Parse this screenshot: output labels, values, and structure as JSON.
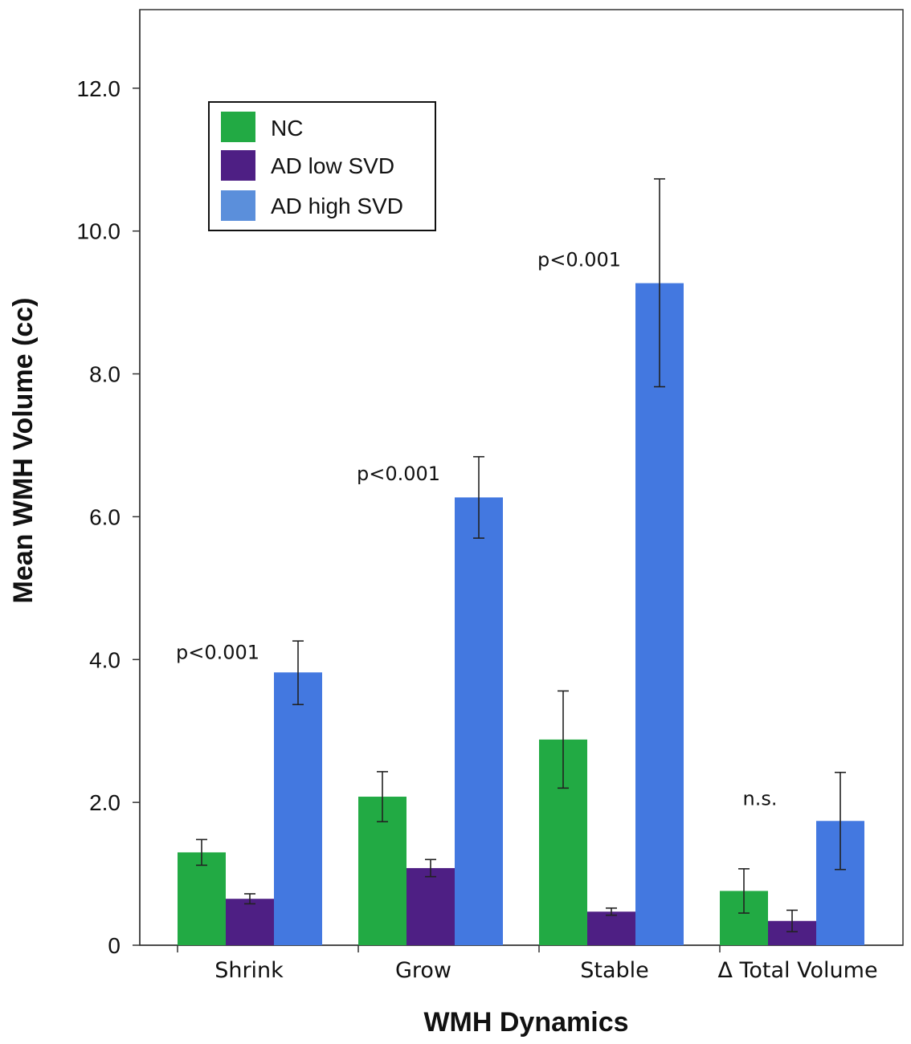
{
  "chart_data": {
    "type": "bar",
    "title": "",
    "xlabel": "WMH Dynamics",
    "ylabel": "Mean WMH Volume (cc)",
    "ylim": [
      0,
      13.1
    ],
    "yticks": [
      0,
      2,
      4,
      6,
      8,
      10,
      12
    ],
    "ytick_labels": [
      "0",
      "2.0",
      "4.0",
      "6.0",
      "8.0",
      "10.0",
      "12.0"
    ],
    "categories": [
      "Shrink",
      "Grow",
      "Stable",
      "Δ Total Volume"
    ],
    "series": [
      {
        "name": "NC",
        "color": "#22aa44",
        "values": [
          1.3,
          2.08,
          2.88,
          0.76
        ],
        "err_low": [
          1.12,
          1.73,
          2.2,
          0.45
        ],
        "err_high": [
          1.48,
          2.43,
          3.56,
          1.07
        ]
      },
      {
        "name": "AD low SVD",
        "color": "#4e1f84",
        "values": [
          0.65,
          1.08,
          0.47,
          0.34
        ],
        "err_low": [
          0.58,
          0.96,
          0.42,
          0.19
        ],
        "err_high": [
          0.72,
          1.2,
          0.52,
          0.49
        ]
      },
      {
        "name": "AD high SVD",
        "color": "#4378e0",
        "values": [
          3.82,
          6.27,
          9.27,
          1.74
        ],
        "err_low": [
          3.37,
          5.7,
          7.82,
          1.06
        ],
        "err_high": [
          4.26,
          6.84,
          10.73,
          2.42
        ]
      }
    ],
    "legend": {
      "position": "top-left",
      "entries": [
        "NC",
        "AD low SVD",
        "AD high SVD"
      ],
      "swatch_colors": [
        "#22aa44",
        "#4e1f84",
        "#5b8fdb"
      ]
    },
    "annotations": [
      {
        "text": "p<0.001",
        "category": "Shrink",
        "y": 4.1
      },
      {
        "text": "p<0.001",
        "category": "Grow",
        "y": 6.6
      },
      {
        "text": "p<0.001",
        "category": "Stable",
        "y": 9.6
      },
      {
        "text": "n.s.",
        "category": "Δ Total Volume",
        "y": 2.05
      }
    ]
  }
}
